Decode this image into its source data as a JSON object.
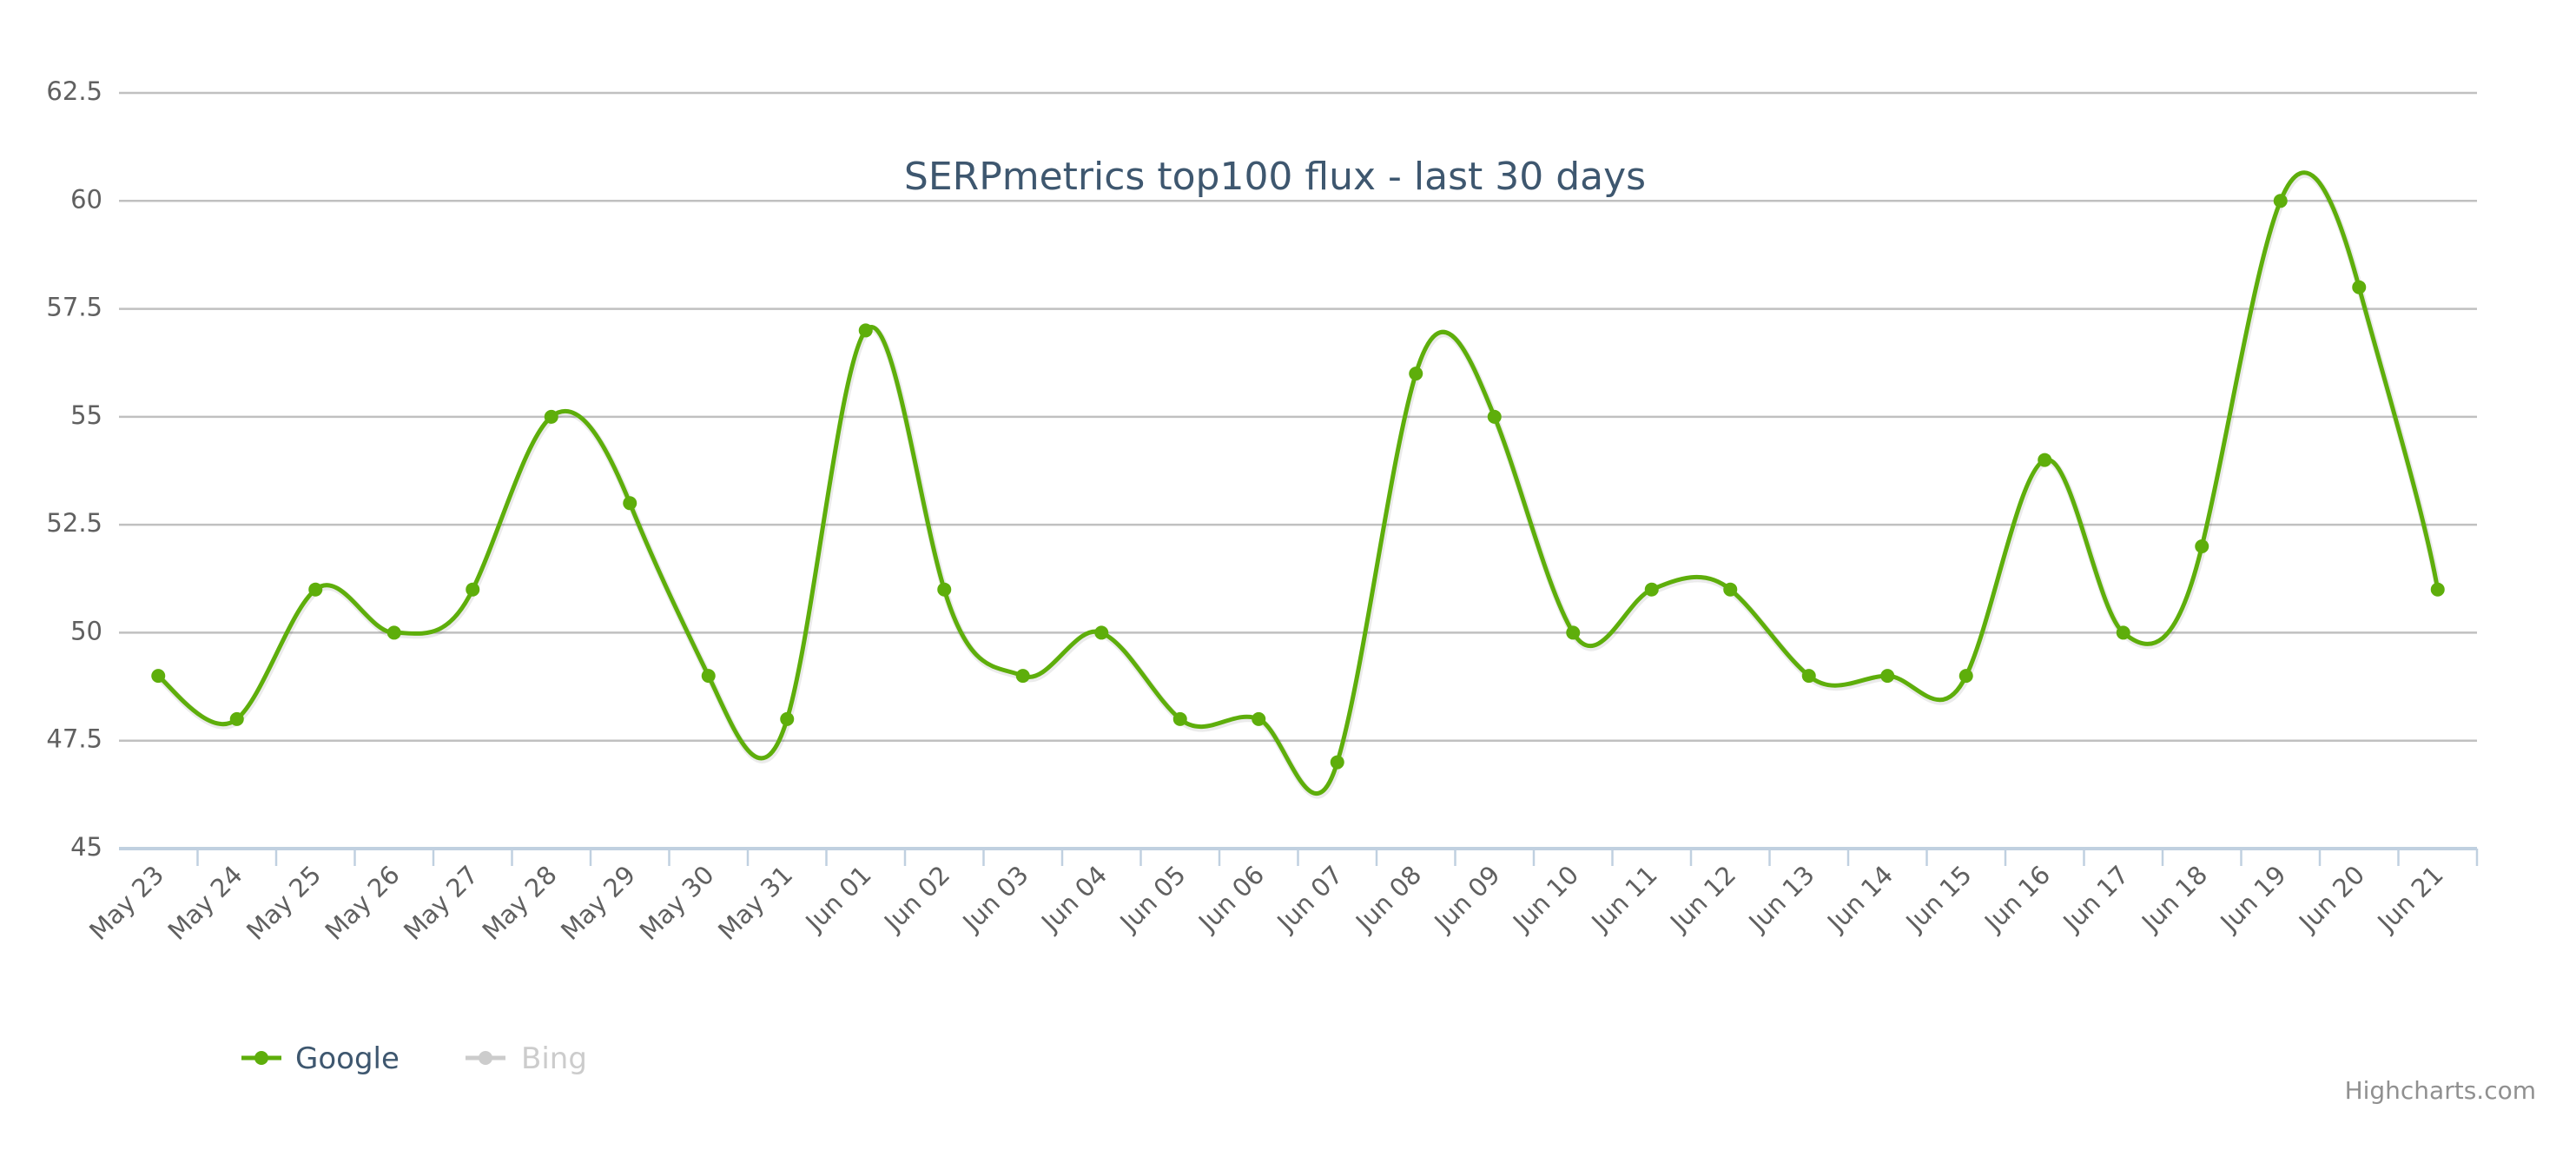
{
  "chart": {
    "title": "SERPmetrics top100 flux - last 30 days",
    "credits": "Highcharts.com",
    "colors": {
      "google": "#5eae0b",
      "bing_inactive": "#cccccc",
      "title": "#3e576f",
      "axis_labels": "#606060",
      "gridline": "#c0c0c0",
      "x_axis_line": "#c0d0e0",
      "legend_active_text": "#3e576f",
      "credits_text": "#909090"
    },
    "legend": [
      {
        "label": "Google",
        "active": true
      },
      {
        "label": "Bing",
        "active": false
      }
    ],
    "y_ticks": [
      "45",
      "47.5",
      "50",
      "52.5",
      "55",
      "57.5",
      "60",
      "62.5"
    ]
  },
  "chart_data": {
    "type": "line",
    "title": "SERPmetrics top100 flux - last 30 days",
    "xlabel": "",
    "ylabel": "",
    "ylim": [
      45,
      62.5
    ],
    "y_tick_interval": 2.5,
    "grid": true,
    "smoothing": "spline",
    "legend_position": "bottom-left",
    "categories": [
      "May 23",
      "May 24",
      "May 25",
      "May 26",
      "May 27",
      "May 28",
      "May 29",
      "May 30",
      "May 31",
      "Jun 01",
      "Jun 02",
      "Jun 03",
      "Jun 04",
      "Jun 05",
      "Jun 06",
      "Jun 07",
      "Jun 08",
      "Jun 09",
      "Jun 10",
      "Jun 11",
      "Jun 12",
      "Jun 13",
      "Jun 14",
      "Jun 15",
      "Jun 16",
      "Jun 17",
      "Jun 18",
      "Jun 19",
      "Jun 20",
      "Jun 21"
    ],
    "series": [
      {
        "name": "Google",
        "visible": true,
        "values": [
          49,
          48,
          51,
          50,
          51,
          55,
          53,
          49,
          48,
          57,
          51,
          49,
          50,
          48,
          48,
          47,
          56,
          55,
          50,
          51,
          51,
          49,
          49,
          49,
          54,
          50,
          52,
          60,
          58,
          51
        ]
      },
      {
        "name": "Bing",
        "visible": false,
        "values": []
      }
    ]
  }
}
